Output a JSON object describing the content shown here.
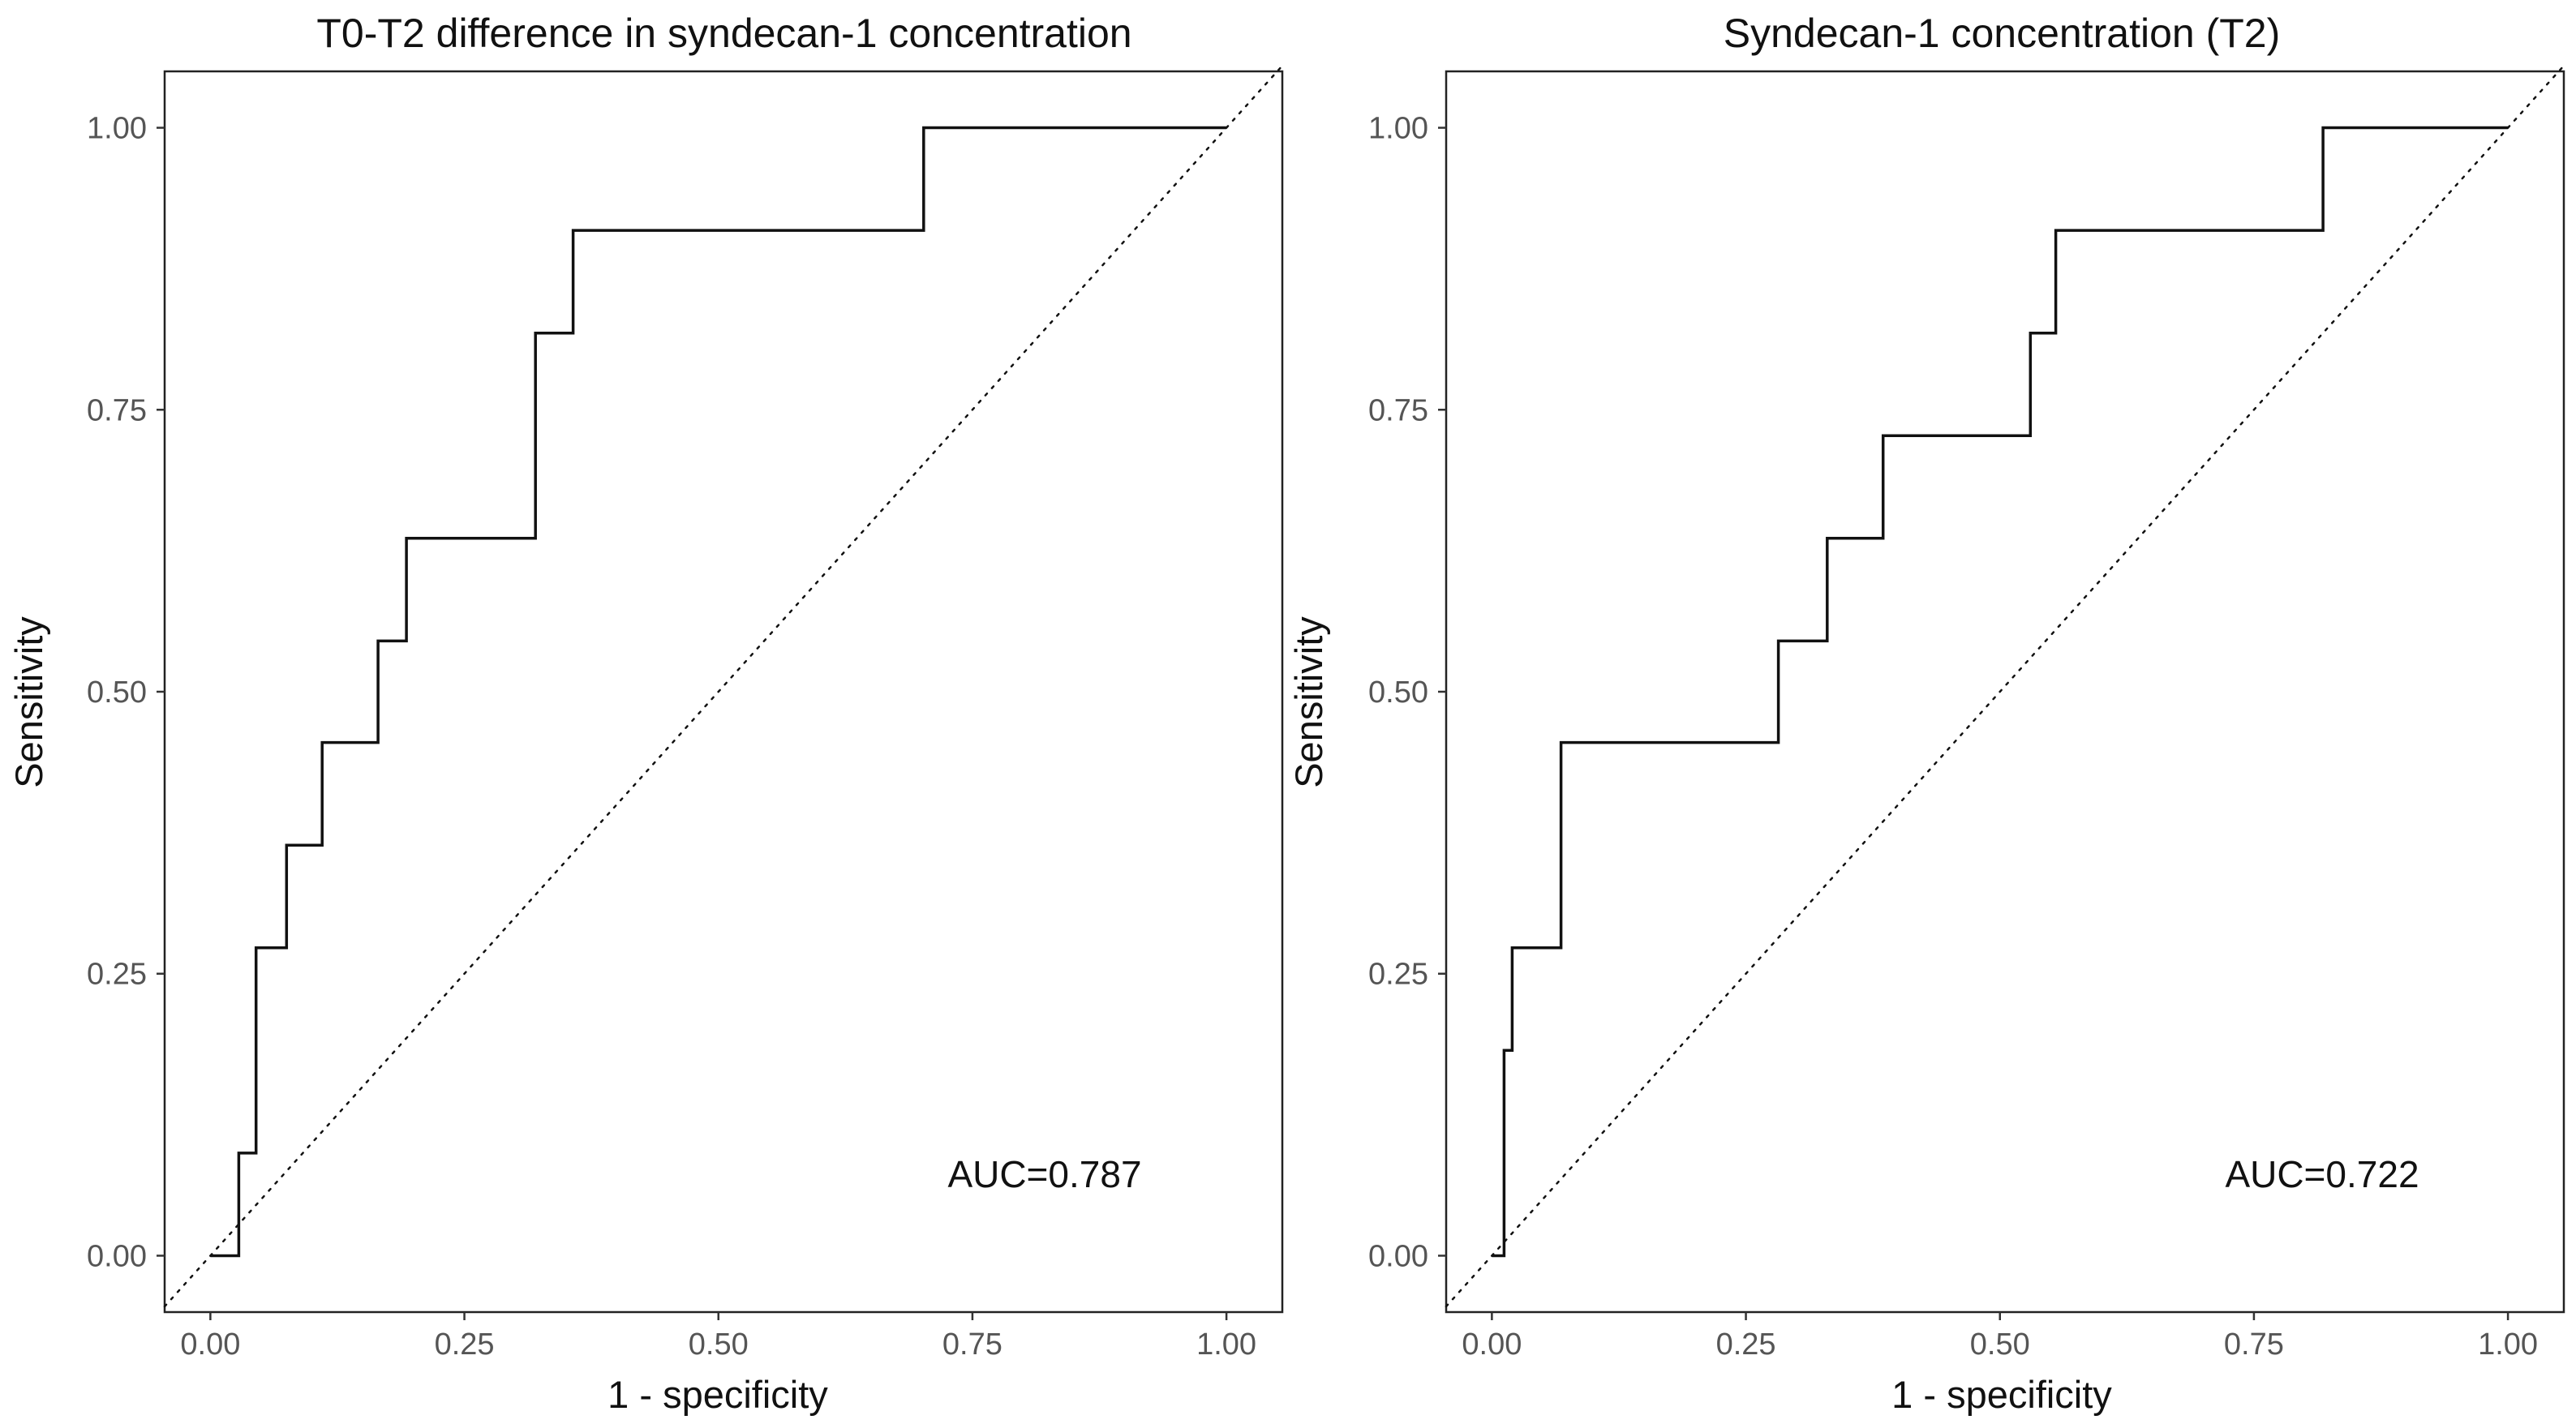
{
  "chart_data": [
    {
      "type": "line",
      "title": "T0-T2 difference in syndecan-1 concentration",
      "xlabel": "1 - specificity",
      "ylabel": "Sensitivity",
      "xlim": [
        -0.045,
        1.055
      ],
      "ylim": [
        -0.05,
        1.05
      ],
      "x_ticks": [
        "0.00",
        "0.25",
        "0.50",
        "0.75",
        "1.00"
      ],
      "y_ticks": [
        "0.00",
        "0.25",
        "0.50",
        "0.75",
        "1.00"
      ],
      "grid": false,
      "legend": "none",
      "reference_line": "diagonal, dotted",
      "annotation": "AUC=0.787",
      "series": [
        {
          "points": [
            [
              0.0,
              0.0
            ],
            [
              0.028,
              0.0
            ],
            [
              0.028,
              0.091
            ],
            [
              0.045,
              0.091
            ],
            [
              0.045,
              0.273
            ],
            [
              0.075,
              0.273
            ],
            [
              0.075,
              0.364
            ],
            [
              0.11,
              0.364
            ],
            [
              0.11,
              0.455
            ],
            [
              0.165,
              0.455
            ],
            [
              0.165,
              0.545
            ],
            [
              0.193,
              0.545
            ],
            [
              0.193,
              0.636
            ],
            [
              0.32,
              0.636
            ],
            [
              0.32,
              0.818
            ],
            [
              0.357,
              0.818
            ],
            [
              0.357,
              0.909
            ],
            [
              0.702,
              0.909
            ],
            [
              0.702,
              1.0
            ],
            [
              1.0,
              1.0
            ]
          ]
        }
      ]
    },
    {
      "type": "line",
      "title": "Syndecan-1 concentration (T2)",
      "xlabel": "1 - specificity",
      "ylabel": "Sensitivity",
      "xlim": [
        -0.045,
        1.055
      ],
      "ylim": [
        -0.05,
        1.05
      ],
      "x_ticks": [
        "0.00",
        "0.25",
        "0.50",
        "0.75",
        "1.00"
      ],
      "y_ticks": [
        "0.00",
        "0.25",
        "0.50",
        "0.75",
        "1.00"
      ],
      "grid": false,
      "legend": "none",
      "reference_line": "diagonal, dotted",
      "annotation": "AUC=0.722",
      "series": [
        {
          "points": [
            [
              0.0,
              0.0
            ],
            [
              0.012,
              0.0
            ],
            [
              0.012,
              0.182
            ],
            [
              0.02,
              0.182
            ],
            [
              0.02,
              0.273
            ],
            [
              0.068,
              0.273
            ],
            [
              0.068,
              0.455
            ],
            [
              0.282,
              0.455
            ],
            [
              0.282,
              0.545
            ],
            [
              0.33,
              0.545
            ],
            [
              0.33,
              0.636
            ],
            [
              0.385,
              0.636
            ],
            [
              0.385,
              0.727
            ],
            [
              0.53,
              0.727
            ],
            [
              0.53,
              0.818
            ],
            [
              0.555,
              0.818
            ],
            [
              0.555,
              0.909
            ],
            [
              0.818,
              0.909
            ],
            [
              0.818,
              1.0
            ],
            [
              1.0,
              1.0
            ]
          ]
        }
      ]
    }
  ]
}
